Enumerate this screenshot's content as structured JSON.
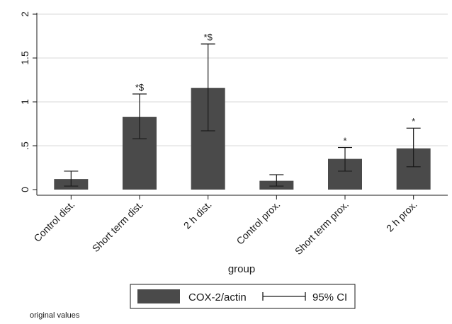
{
  "chart_data": {
    "type": "bar",
    "categories": [
      "Control dist.",
      "Short term dist.",
      "2 h dist.",
      "Control prox.",
      "Short term prox.",
      "2 h prox."
    ],
    "values": [
      0.12,
      0.83,
      1.16,
      0.1,
      0.35,
      0.47
    ],
    "ci_lower": [
      0.04,
      0.58,
      0.67,
      0.04,
      0.21,
      0.26
    ],
    "ci_upper": [
      0.21,
      1.09,
      1.66,
      0.17,
      0.48,
      0.7
    ],
    "significance": [
      "",
      "*$",
      "*$",
      "",
      "*",
      "*"
    ],
    "y_ticks": [
      0,
      0.5,
      1,
      1.5,
      2
    ],
    "y_tick_labels": [
      "0",
      ".5",
      "1",
      "1.5",
      "2"
    ],
    "ylim": [
      0,
      2
    ],
    "xlabel": "group",
    "ylabel": "",
    "title": "",
    "legend": {
      "position": "bottom",
      "bar_label": "COX-2/actin",
      "ci_label": "95% CI"
    },
    "note": "original values",
    "colors": {
      "bar": "#4a4a4a",
      "axis": "#1a1a1a",
      "grid": "#d9d9d9"
    },
    "grid": true
  }
}
